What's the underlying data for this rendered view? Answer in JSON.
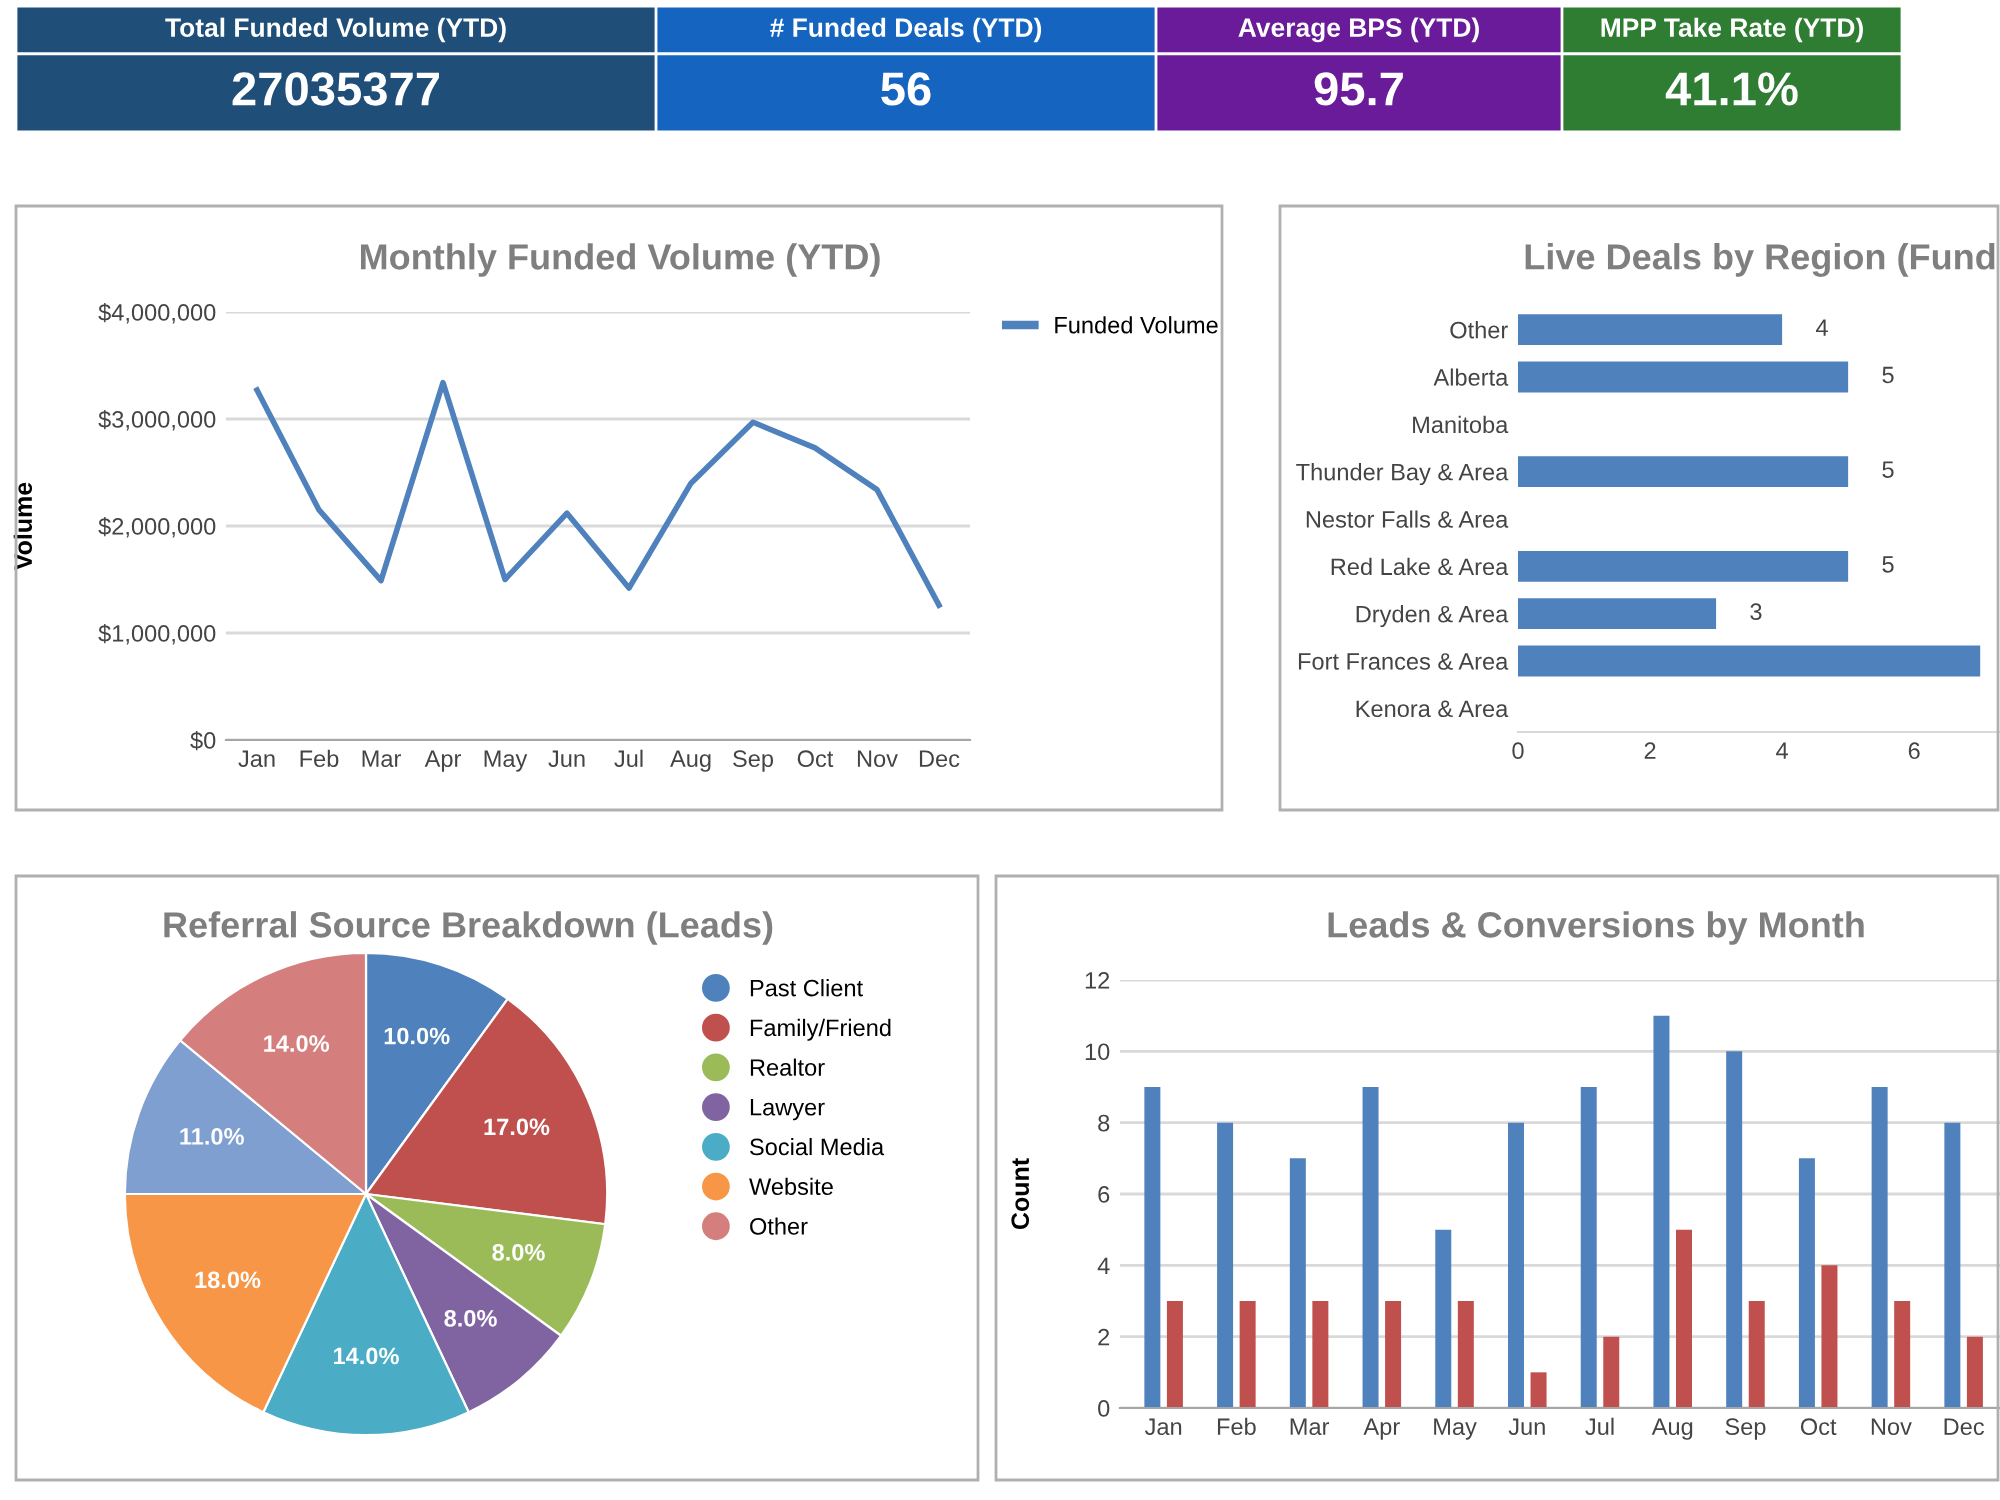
{
  "chart_data": [
    {
      "type": "other",
      "categories": [
        "Total Funded Volume (YTD)",
        "# Funded Deals (YTD)",
        "Average BPS (YTD)",
        "MPP Take Rate (YTD)"
      ],
      "annotations": [
        "27035377",
        "56",
        "95.7",
        "41.1%"
      ],
      "colors": [
        "#1f4e79",
        "#1565c0",
        "#6a1b9a",
        "#2e7d32"
      ]
    },
    {
      "type": "line",
      "title": "Monthly Funded Volume (YTD)",
      "ylabel": "Volume",
      "categories": [
        "Jan",
        "Feb",
        "Mar",
        "Apr",
        "May",
        "Jun",
        "Jul",
        "Aug",
        "Sep",
        "Oct",
        "Nov",
        "Dec"
      ],
      "series": [
        {
          "name": "Funded Volume",
          "color": "#4f81bd",
          "values": [
            3270000,
            2150000,
            1490000,
            3340000,
            1500000,
            2120000,
            1420000,
            2400000,
            2970000,
            2730000,
            2340000,
            1260000
          ]
        }
      ],
      "ylim": [
        0,
        4000000
      ],
      "yticks": [
        {
          "value": 0,
          "label": "$0"
        },
        {
          "value": 1000000,
          "label": "$1,000,000"
        },
        {
          "value": 2000000,
          "label": "$2,000,000"
        },
        {
          "value": 3000000,
          "label": "$3,000,000"
        },
        {
          "value": 4000000,
          "label": "$4,000,000"
        }
      ],
      "grid": "y",
      "legend": "right",
      "marker": "none",
      "line_style": "solid"
    },
    {
      "type": "bar",
      "orientation": "horizontal",
      "title": "Live Deals by Region (Fund",
      "categories": [
        "Other",
        "Alberta",
        "Manitoba",
        "Thunder Bay & Area",
        "Nestor Falls & Area",
        "Red Lake & Area",
        "Dryden & Area",
        "Fort Frances & Area",
        "Kenora & Area"
      ],
      "values": [
        4,
        5,
        null,
        5,
        null,
        5,
        3,
        7,
        null
      ],
      "color": "#4f81bd",
      "value_labels": [
        "4",
        "5",
        null,
        "5",
        null,
        "5",
        "3",
        null,
        null
      ],
      "xlim": [
        0,
        7.3
      ],
      "xticks": [
        0,
        2,
        4,
        6
      ]
    },
    {
      "type": "pie",
      "title": "Referral Source Breakdown (Leads)",
      "categories": [
        "Past Client",
        "Family/Friend",
        "Realtor",
        "Lawyer",
        "Social Media",
        "Website",
        null,
        "Other"
      ],
      "values": [
        10,
        17,
        8,
        8,
        14,
        18,
        11,
        14
      ],
      "colors": [
        "#4f81bd",
        "#c0504d",
        "#9bbb59",
        "#8064a2",
        "#4bacc6",
        "#f79646",
        "#7f9fd1",
        "#d47f7d"
      ],
      "value_labels": [
        "10.0%",
        "17.0%",
        "8.0%",
        "8.0%",
        "14.0%",
        "18.0%",
        "11.0%",
        "14.0%"
      ],
      "legend": "right"
    },
    {
      "type": "bar",
      "title": "Leads & Conversions by Month",
      "ylabel": "Count",
      "categories": [
        "Jan",
        "Feb",
        "Mar",
        "Apr",
        "May",
        "Jun",
        "Jul",
        "Aug",
        "Sep",
        "Oct",
        "Nov",
        "Dec"
      ],
      "series": [
        {
          "color": "#4f81bd",
          "values": [
            9,
            8,
            7,
            9,
            5,
            8,
            9,
            11,
            10,
            7,
            9,
            8
          ]
        },
        {
          "color": "#c0504d",
          "values": [
            3,
            3,
            3,
            3,
            3,
            1,
            2,
            5,
            3,
            4,
            3,
            2
          ]
        }
      ],
      "ylim": [
        0,
        12
      ],
      "yticks": [
        0,
        2,
        4,
        6,
        8,
        10,
        12
      ],
      "grid": "y"
    }
  ]
}
